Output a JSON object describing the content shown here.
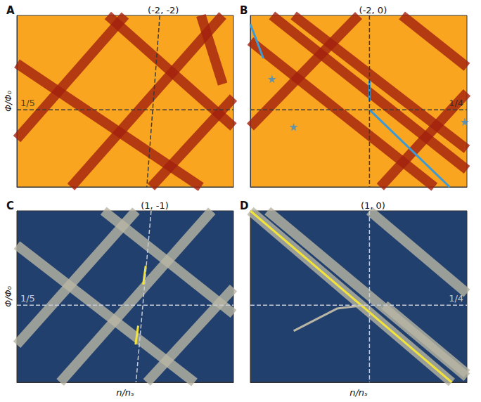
{
  "chart_data": [
    {
      "type": "line",
      "title": "(-2, -2)",
      "subtitle": "A",
      "ylabel": "Φ/Φ₀",
      "xlim": [
        0,
        1
      ],
      "ylim": [
        0,
        1
      ],
      "tick_labels": false,
      "grid": false,
      "annotations": [
        {
          "text": "1/5",
          "x": 0.05,
          "y": 0.49
        }
      ],
      "series": [
        {
          "type": "line",
          "line_style": "dashed",
          "color": "#3a3a3a",
          "x": [
            0.66,
            0.6
          ],
          "values": [
            1,
            0
          ]
        },
        {
          "type": "line",
          "line_style": "dashed",
          "color": "#3a3a3a",
          "x": [
            0,
            1
          ],
          "values": [
            0.45,
            0.45
          ]
        },
        {
          "type": "line",
          "line_style": "band",
          "color": "#a3200e",
          "x": [
            0,
            0.85
          ],
          "values": [
            0.72,
            0
          ]
        },
        {
          "type": "line",
          "line_style": "band",
          "color": "#a3200e",
          "x": [
            0.42,
            1
          ],
          "values": [
            1,
            0.35
          ]
        },
        {
          "type": "line",
          "line_style": "band",
          "color": "#a3200e",
          "x": [
            0,
            0.5
          ],
          "values": [
            0.28,
            1
          ]
        },
        {
          "type": "line",
          "line_style": "band",
          "color": "#a3200e",
          "x": [
            0.25,
            0.95
          ],
          "values": [
            0,
            1
          ]
        },
        {
          "type": "line",
          "line_style": "band",
          "color": "#a3200e",
          "x": [
            0.62,
            1
          ],
          "values": [
            0,
            0.52
          ]
        },
        {
          "type": "line",
          "line_style": "band",
          "color": "#a3200e",
          "x": [
            0.85,
            0.95
          ],
          "values": [
            1,
            0.6
          ]
        }
      ]
    },
    {
      "type": "line",
      "title": "(-2, 0)",
      "subtitle": "B",
      "xlim": [
        0,
        1
      ],
      "ylim": [
        0,
        1
      ],
      "tick_labels": false,
      "grid": false,
      "annotations": [
        {
          "text": "1/4",
          "x": 0.95,
          "y": 0.49
        }
      ],
      "series": [
        {
          "type": "line",
          "line_style": "dashed",
          "color": "#3a3a3a",
          "x": [
            0.55,
            0.55
          ],
          "values": [
            1,
            0
          ]
        },
        {
          "type": "line",
          "line_style": "dashed",
          "color": "#3a3a3a",
          "x": [
            0,
            1
          ],
          "values": [
            0.45,
            0.45
          ]
        },
        {
          "type": "line",
          "line_style": "band",
          "color": "#a3200e",
          "x": [
            0.1,
            1
          ],
          "values": [
            1,
            0.1
          ]
        },
        {
          "type": "line",
          "line_style": "band",
          "color": "#a3200e",
          "x": [
            0.2,
            1
          ],
          "values": [
            1,
            0.22
          ]
        },
        {
          "type": "line",
          "line_style": "band",
          "color": "#a3200e",
          "x": [
            0,
            0.85
          ],
          "values": [
            0.85,
            0
          ]
        },
        {
          "type": "line",
          "line_style": "band",
          "color": "#a3200e",
          "x": [
            0,
            0.5
          ],
          "values": [
            0.35,
            1
          ]
        },
        {
          "type": "line",
          "line_style": "band",
          "color": "#a3200e",
          "x": [
            0.6,
            1
          ],
          "values": [
            0,
            0.55
          ]
        },
        {
          "type": "line",
          "line_style": "band",
          "color": "#a3200e",
          "x": [
            0.7,
            1
          ],
          "values": [
            1,
            0.7
          ]
        },
        {
          "type": "line",
          "line_style": "solid",
          "color": "#3d9ad6",
          "x": [
            0.55,
            0.92
          ],
          "values": [
            0.45,
            0
          ]
        },
        {
          "type": "line",
          "line_style": "solid",
          "color": "#3d9ad6",
          "x": [
            0.55,
            0.55
          ],
          "values": [
            0.5,
            0.62
          ]
        },
        {
          "type": "line",
          "line_style": "solid",
          "color": "#3d9ad6",
          "x": [
            0,
            0.06
          ],
          "values": [
            0.95,
            0.75
          ]
        },
        {
          "type": "scatter",
          "marker": "star",
          "color": "#3a8fd0",
          "x": [
            0.1,
            0.2,
            0.99
          ],
          "values": [
            0.63,
            0.35,
            0.38
          ]
        }
      ]
    },
    {
      "type": "line",
      "title": "(1, -1)",
      "subtitle": "C",
      "xlabel": "n/nₛ",
      "ylabel": "Φ/Φ₀",
      "xlim": [
        0,
        1
      ],
      "ylim": [
        0,
        1
      ],
      "tick_labels": false,
      "grid": false,
      "annotations": [
        {
          "text": "1/5",
          "x": 0.05,
          "y": 0.49
        }
      ],
      "series": [
        {
          "type": "line",
          "line_style": "dashed",
          "color": "#c8ccd6",
          "x": [
            0.62,
            0.55
          ],
          "values": [
            1,
            0
          ]
        },
        {
          "type": "line",
          "line_style": "dashed",
          "color": "#c8ccd6",
          "x": [
            0,
            1
          ],
          "values": [
            0.45,
            0.45
          ]
        },
        {
          "type": "line",
          "line_style": "band",
          "color": "#b9b5a4",
          "x": [
            0,
            0.82
          ],
          "values": [
            0.8,
            0
          ]
        },
        {
          "type": "line",
          "line_style": "band",
          "color": "#b9b5a4",
          "x": [
            0.4,
            1
          ],
          "values": [
            1,
            0.4
          ]
        },
        {
          "type": "line",
          "line_style": "band",
          "color": "#b9b5a4",
          "x": [
            0,
            0.55
          ],
          "values": [
            0.22,
            1
          ]
        },
        {
          "type": "line",
          "line_style": "band",
          "color": "#b9b5a4",
          "x": [
            0.2,
            0.9
          ],
          "values": [
            0,
            1
          ]
        },
        {
          "type": "line",
          "line_style": "band",
          "color": "#b9b5a4",
          "x": [
            0.6,
            1
          ],
          "values": [
            0,
            0.55
          ]
        },
        {
          "type": "line",
          "line_style": "solid",
          "color": "#f2e33a",
          "x": [
            0.595,
            0.583
          ],
          "values": [
            0.68,
            0.57
          ]
        },
        {
          "type": "line",
          "line_style": "solid",
          "color": "#f2e33a",
          "x": [
            0.56,
            0.548
          ],
          "values": [
            0.33,
            0.22
          ]
        }
      ]
    },
    {
      "type": "line",
      "title": "(1, 0)",
      "subtitle": "D",
      "xlabel": "n/nₛ",
      "xlim": [
        0,
        1
      ],
      "ylim": [
        0,
        1
      ],
      "tick_labels": false,
      "grid": false,
      "annotations": [
        {
          "text": "1/4",
          "x": 0.95,
          "y": 0.49
        }
      ],
      "series": [
        {
          "type": "line",
          "line_style": "dashed",
          "color": "#c8ccd6",
          "x": [
            0.55,
            0.55
          ],
          "values": [
            1,
            0
          ]
        },
        {
          "type": "line",
          "line_style": "dashed",
          "color": "#c8ccd6",
          "x": [
            0,
            1
          ],
          "values": [
            0.45,
            0.45
          ]
        },
        {
          "type": "line",
          "line_style": "band",
          "color": "#b9b5a4",
          "x": [
            0,
            0.93
          ],
          "values": [
            1,
            0
          ]
        },
        {
          "type": "line",
          "line_style": "band",
          "color": "#b9b5a4",
          "x": [
            0.08,
            1
          ],
          "values": [
            1,
            0.03
          ]
        },
        {
          "type": "line",
          "line_style": "band",
          "color": "#b9b5a4",
          "x": [
            0.55,
            1
          ],
          "values": [
            1,
            0.52
          ]
        },
        {
          "type": "line",
          "line_style": "band",
          "color": "#b9b5a4",
          "x": [
            0.62,
            1
          ],
          "values": [
            0.45,
            0.05
          ]
        },
        {
          "type": "line",
          "line_style": "solid",
          "color": "#b9b5a4",
          "x": [
            0.2,
            0.4,
            0.53
          ],
          "values": [
            0.3,
            0.43,
            0.45
          ]
        },
        {
          "type": "line",
          "line_style": "solid",
          "color": "#f2e33a",
          "x": [
            0,
            0.93
          ],
          "values": [
            1,
            0
          ]
        }
      ]
    }
  ]
}
